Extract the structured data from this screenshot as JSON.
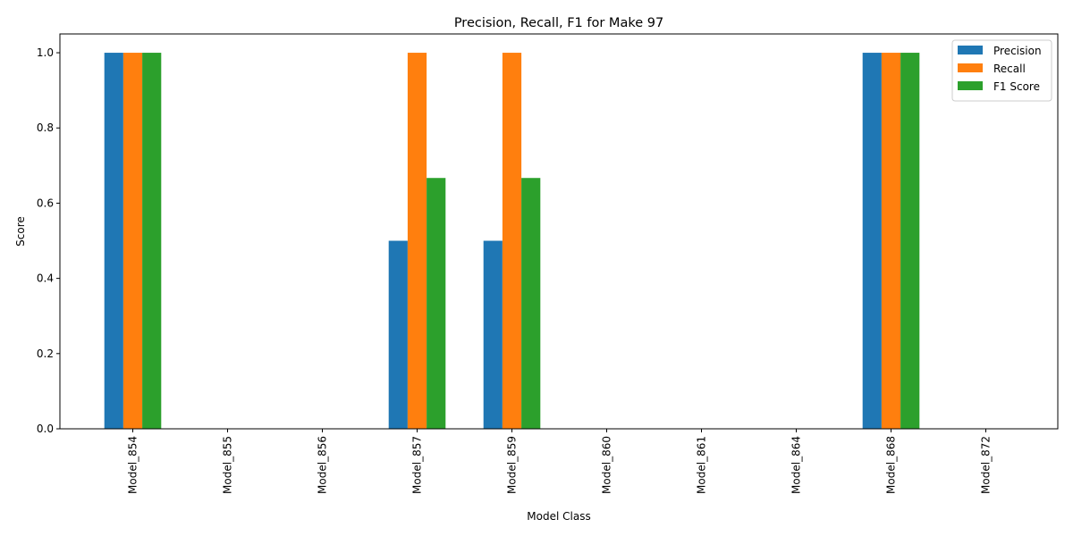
{
  "chart_data": {
    "type": "bar",
    "title": "Precision, Recall, F1 for Make 97",
    "xlabel": "Model Class",
    "ylabel": "Score",
    "categories": [
      "Model_854",
      "Model_855",
      "Model_856",
      "Model_857",
      "Model_859",
      "Model_860",
      "Model_861",
      "Model_864",
      "Model_868",
      "Model_872"
    ],
    "series": [
      {
        "name": "Precision",
        "color": "#1f77b4",
        "values": [
          1.0,
          0,
          0,
          0.5,
          0.5,
          0,
          0,
          0,
          1.0,
          0
        ]
      },
      {
        "name": "Recall",
        "color": "#ff7f0e",
        "values": [
          1.0,
          0,
          0,
          1.0,
          1.0,
          0,
          0,
          0,
          1.0,
          0
        ]
      },
      {
        "name": "F1 Score",
        "color": "#2ca02c",
        "values": [
          1.0,
          0,
          0,
          0.667,
          0.667,
          0,
          0,
          0,
          1.0,
          0
        ]
      }
    ],
    "ylim": [
      0,
      1.05
    ],
    "yticks": [
      "0.0",
      "0.2",
      "0.4",
      "0.6",
      "0.8",
      "1.0"
    ],
    "grid": false,
    "legend_position": "top-right"
  }
}
